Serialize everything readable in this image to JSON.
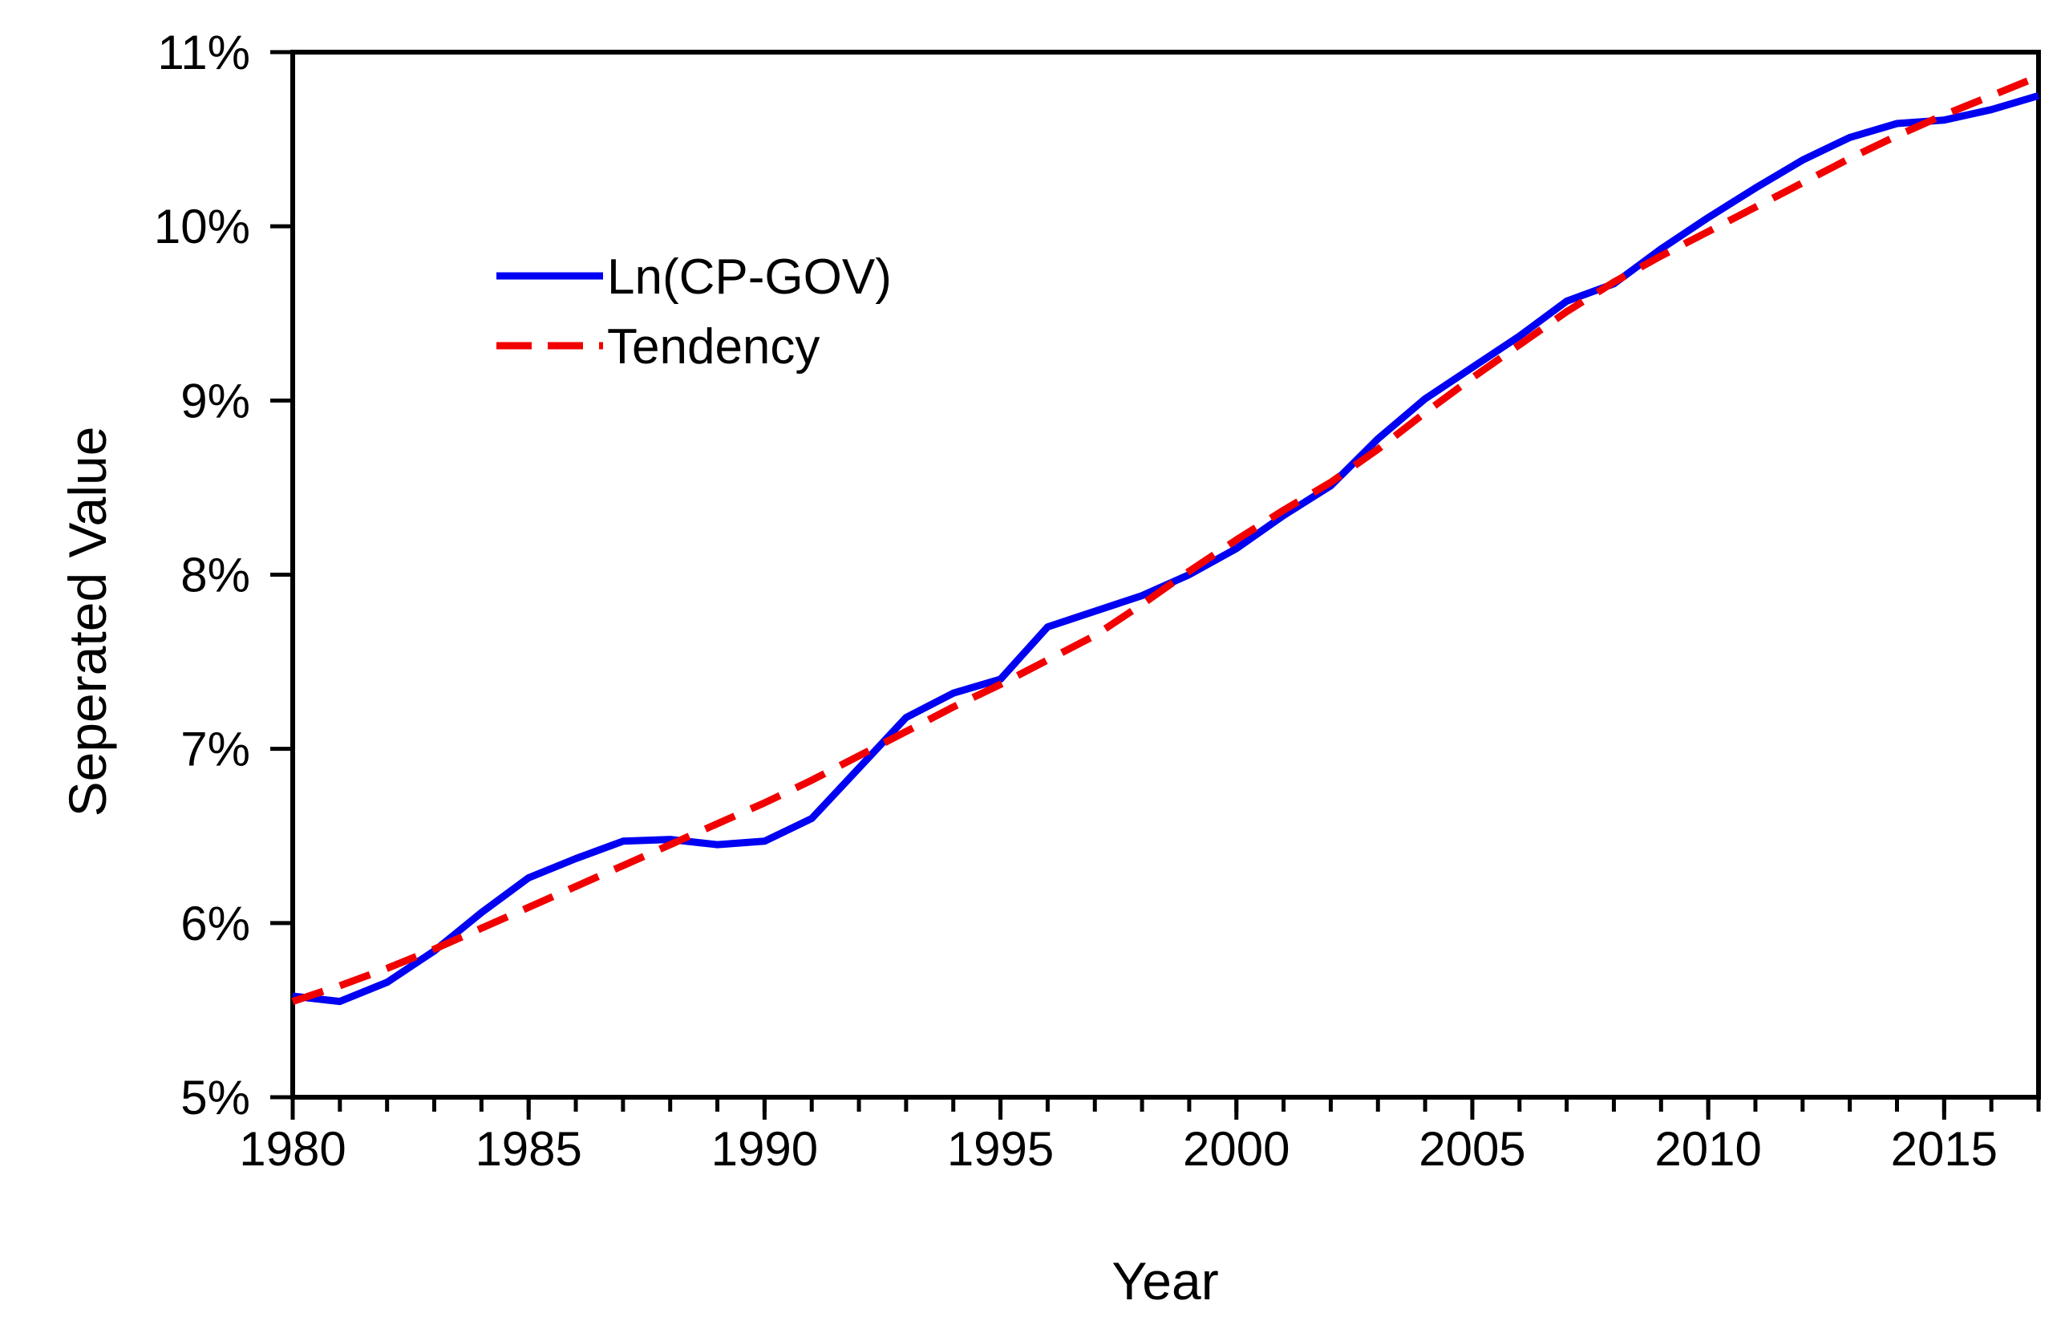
{
  "figure": {
    "x_axis_title": "Year",
    "y_axis_title": "Seperated Value",
    "legend": {
      "items": [
        {
          "label": "Ln(CP-GOV)"
        },
        {
          "label": "Tendency"
        }
      ]
    },
    "colors": {
      "series_ln_cp_gov": "#0000f2",
      "series_tendency": "#f20000",
      "axis": "#000000",
      "background": "#ffffff"
    }
  },
  "chart_data": {
    "type": "line",
    "title": "",
    "xlabel": "Year",
    "ylabel": "Seperated Value",
    "xlim": [
      1980,
      2017
    ],
    "ylim": [
      5,
      11
    ],
    "grid": false,
    "legend_position": "upper-left-inside",
    "x_major_ticks": [
      1980,
      1985,
      1990,
      1995,
      2000,
      2005,
      2010,
      2015
    ],
    "x_tick_labels": [
      "1980",
      "1985",
      "1990",
      "1995",
      "2000",
      "2005",
      "2010",
      "2015"
    ],
    "x_minor_tick_step": 1,
    "y_major_ticks": [
      5,
      6,
      7,
      8,
      9,
      10,
      11
    ],
    "y_tick_labels": [
      "5%",
      "6%",
      "7%",
      "8%",
      "9%",
      "10%",
      "11%"
    ],
    "x": [
      1980,
      1981,
      1982,
      1983,
      1984,
      1985,
      1986,
      1987,
      1988,
      1989,
      1990,
      1991,
      1992,
      1993,
      1994,
      1995,
      1996,
      1997,
      1998,
      1999,
      2000,
      2001,
      2002,
      2003,
      2004,
      2005,
      2006,
      2007,
      2008,
      2009,
      2010,
      2011,
      2012,
      2013,
      2014,
      2015,
      2016,
      2017
    ],
    "series": [
      {
        "name": "Ln(CP-GOV)",
        "style": "solid",
        "color": "#0000f2",
        "values": [
          5.58,
          5.55,
          5.66,
          5.84,
          6.06,
          6.26,
          6.37,
          6.47,
          6.48,
          6.45,
          6.47,
          6.6,
          6.89,
          7.18,
          7.32,
          7.4,
          7.7,
          7.79,
          7.88,
          8.0,
          8.15,
          8.34,
          8.51,
          8.78,
          9.01,
          9.19,
          9.37,
          9.57,
          9.67,
          9.87,
          10.05,
          10.22,
          10.38,
          10.51,
          10.59,
          10.61,
          10.67,
          10.75
        ]
      },
      {
        "name": "Tendency",
        "style": "dashed",
        "color": "#f20000",
        "values": [
          5.55,
          5.64,
          5.74,
          5.85,
          5.97,
          6.09,
          6.21,
          6.33,
          6.45,
          6.57,
          6.69,
          6.82,
          6.96,
          7.1,
          7.24,
          7.37,
          7.51,
          7.65,
          7.83,
          8.02,
          8.2,
          8.37,
          8.53,
          8.72,
          8.93,
          9.13,
          9.32,
          9.51,
          9.68,
          9.83,
          9.97,
          10.11,
          10.25,
          10.39,
          10.52,
          10.64,
          10.75,
          10.86
        ]
      }
    ]
  }
}
